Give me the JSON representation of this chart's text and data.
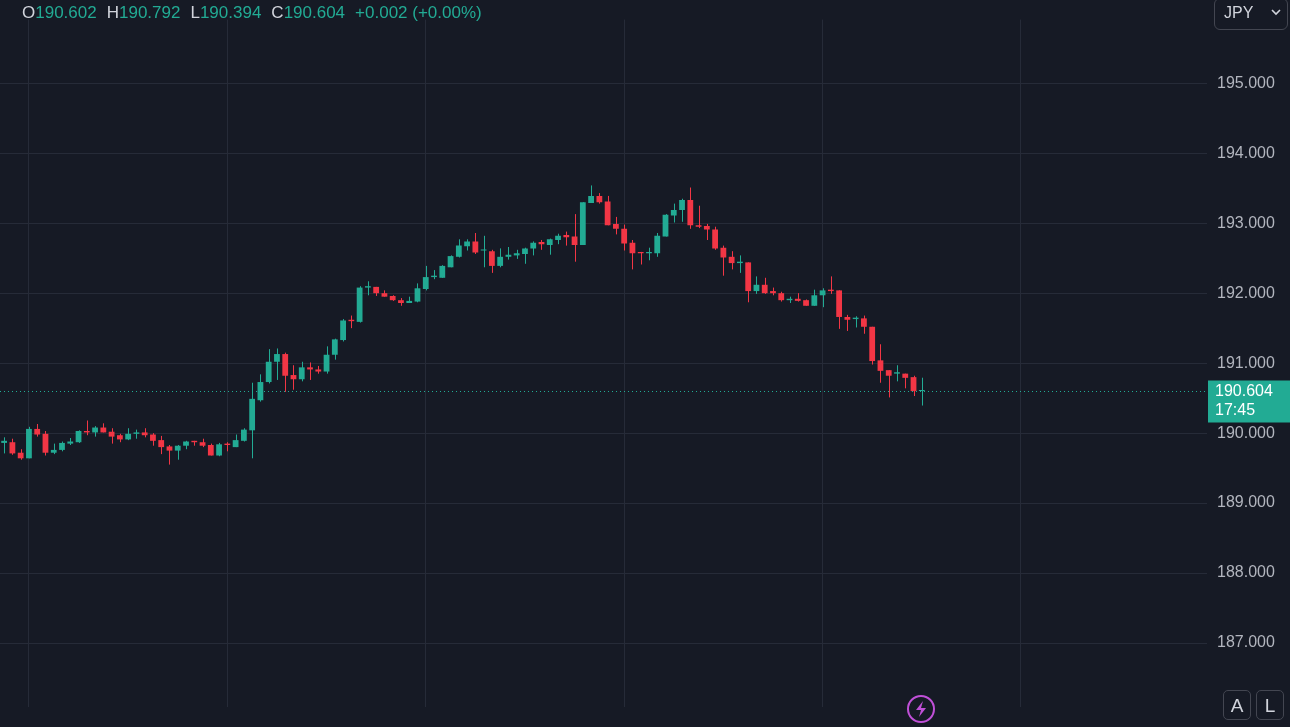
{
  "chart_data": {
    "type": "candlestick",
    "categories": [
      null,
      null,
      null,
      null,
      null,
      null,
      null,
      null,
      null,
      null,
      null,
      null,
      null,
      null,
      null,
      null,
      null,
      null,
      null,
      null,
      null,
      null,
      null,
      null,
      null,
      null,
      null,
      null,
      null,
      null,
      null,
      null,
      null,
      null,
      null,
      null,
      null,
      null,
      null,
      null,
      null,
      null,
      null,
      null,
      null,
      null,
      null,
      null,
      null,
      null,
      null,
      null,
      null,
      null,
      null,
      null,
      null,
      null,
      null,
      null,
      null,
      null,
      null,
      null,
      null,
      null,
      null,
      null,
      null,
      null,
      null,
      null,
      null,
      null,
      null,
      null,
      null,
      null,
      null,
      null,
      null,
      null,
      null,
      null,
      null,
      null,
      null,
      null,
      null,
      null,
      null,
      null,
      null,
      null,
      null,
      null,
      null,
      null,
      null,
      null,
      null,
      null,
      null,
      null,
      null,
      null,
      null,
      null,
      null,
      null,
      null,
      null,
      null,
      null,
      null,
      null,
      null,
      null,
      null,
      null,
      null,
      null,
      null,
      null,
      null,
      null,
      null,
      null,
      null,
      null,
      null,
      null,
      null,
      null,
      null,
      null,
      null,
      null,
      null,
      null,
      null,
      null,
      null,
      null,
      null,
      null
    ],
    "ohlc": [
      [
        189.86,
        189.94,
        189.71,
        189.89
      ],
      [
        189.87,
        189.92,
        189.69,
        189.71
      ],
      [
        189.72,
        189.77,
        189.62,
        189.64
      ],
      [
        189.64,
        190.09,
        189.64,
        190.06
      ],
      [
        190.06,
        190.13,
        189.95,
        189.98
      ],
      [
        189.99,
        190.03,
        189.68,
        189.72
      ],
      [
        189.72,
        189.85,
        189.7,
        189.76
      ],
      [
        189.76,
        189.88,
        189.74,
        189.86
      ],
      [
        189.85,
        189.93,
        189.83,
        189.88
      ],
      [
        189.87,
        190.04,
        189.86,
        190.03
      ],
      [
        190.03,
        190.18,
        189.97,
        190.01
      ],
      [
        190.01,
        190.1,
        189.95,
        190.08
      ],
      [
        190.08,
        190.14,
        190.01,
        190.01
      ],
      [
        190.02,
        190.07,
        189.85,
        189.95
      ],
      [
        189.97,
        189.99,
        189.87,
        189.91
      ],
      [
        189.91,
        190.07,
        189.9,
        189.99
      ],
      [
        189.99,
        190.05,
        189.92,
        190.01
      ],
      [
        190.01,
        190.07,
        189.94,
        189.97
      ],
      [
        189.98,
        190.0,
        189.82,
        189.89
      ],
      [
        189.9,
        189.96,
        189.7,
        189.8
      ],
      [
        189.81,
        189.83,
        189.55,
        189.75
      ],
      [
        189.75,
        189.83,
        189.62,
        189.82
      ],
      [
        189.82,
        189.89,
        189.77,
        189.88
      ],
      [
        189.89,
        189.89,
        189.82,
        189.87
      ],
      [
        189.87,
        189.92,
        189.8,
        189.82
      ],
      [
        189.83,
        189.85,
        189.68,
        189.68
      ],
      [
        189.68,
        189.86,
        189.67,
        189.84
      ],
      [
        189.85,
        189.87,
        189.74,
        189.83
      ],
      [
        189.8,
        189.98,
        189.8,
        189.9
      ],
      [
        189.89,
        190.07,
        189.88,
        190.05
      ],
      [
        190.04,
        190.72,
        189.64,
        190.49
      ],
      [
        190.47,
        190.84,
        190.45,
        190.73
      ],
      [
        190.73,
        191.2,
        190.71,
        191.02
      ],
      [
        191.02,
        191.21,
        190.76,
        191.13
      ],
      [
        191.13,
        191.15,
        190.59,
        190.82
      ],
      [
        190.83,
        190.97,
        190.62,
        190.77
      ],
      [
        190.77,
        191.02,
        190.74,
        190.94
      ],
      [
        190.94,
        191.01,
        190.76,
        190.91
      ],
      [
        190.91,
        190.96,
        190.85,
        190.88
      ],
      [
        190.88,
        191.24,
        190.85,
        191.12
      ],
      [
        191.12,
        191.35,
        191.05,
        191.34
      ],
      [
        191.33,
        191.63,
        191.31,
        191.61
      ],
      [
        191.62,
        191.68,
        191.5,
        191.6
      ],
      [
        191.59,
        192.1,
        191.58,
        192.08
      ],
      [
        192.08,
        192.17,
        191.97,
        192.1
      ],
      [
        192.09,
        192.09,
        191.96,
        192.0
      ],
      [
        192.0,
        192.04,
        191.95,
        191.95
      ],
      [
        191.96,
        191.97,
        191.89,
        191.9
      ],
      [
        191.9,
        191.93,
        191.82,
        191.86
      ],
      [
        191.86,
        191.95,
        191.86,
        191.89
      ],
      [
        191.88,
        192.14,
        191.87,
        192.07
      ],
      [
        192.06,
        192.39,
        192.04,
        192.23
      ],
      [
        192.23,
        192.33,
        192.2,
        192.25
      ],
      [
        192.22,
        192.4,
        192.22,
        192.39
      ],
      [
        192.37,
        192.54,
        192.37,
        192.53
      ],
      [
        192.52,
        192.77,
        192.51,
        192.68
      ],
      [
        192.67,
        192.77,
        192.61,
        192.74
      ],
      [
        192.74,
        192.86,
        192.56,
        192.58
      ],
      [
        192.61,
        192.82,
        192.37,
        192.62
      ],
      [
        192.6,
        192.62,
        192.29,
        192.39
      ],
      [
        192.39,
        192.64,
        192.37,
        192.52
      ],
      [
        192.52,
        192.66,
        192.48,
        192.55
      ],
      [
        192.54,
        192.62,
        192.49,
        192.57
      ],
      [
        192.56,
        192.65,
        192.42,
        192.64
      ],
      [
        192.64,
        192.74,
        192.54,
        192.72
      ],
      [
        192.73,
        192.76,
        192.62,
        192.7
      ],
      [
        192.69,
        192.78,
        192.55,
        192.77
      ],
      [
        192.76,
        192.85,
        192.7,
        192.82
      ],
      [
        192.83,
        192.88,
        192.68,
        192.8
      ],
      [
        192.81,
        193.13,
        192.45,
        192.69
      ],
      [
        192.69,
        193.3,
        192.69,
        193.3
      ],
      [
        193.29,
        193.54,
        193.29,
        193.39
      ],
      [
        193.39,
        193.43,
        193.28,
        193.3
      ],
      [
        193.31,
        193.39,
        192.97,
        192.97
      ],
      [
        192.99,
        193.09,
        192.84,
        192.92
      ],
      [
        192.92,
        192.98,
        192.61,
        192.71
      ],
      [
        192.72,
        192.76,
        192.34,
        192.57
      ],
      [
        192.59,
        192.59,
        192.41,
        192.57
      ],
      [
        192.57,
        192.65,
        192.47,
        192.59
      ],
      [
        192.57,
        192.86,
        192.52,
        192.82
      ],
      [
        192.81,
        193.13,
        192.81,
        193.12
      ],
      [
        193.11,
        193.28,
        193.01,
        193.19
      ],
      [
        193.19,
        193.35,
        193.02,
        193.33
      ],
      [
        193.33,
        193.51,
        192.92,
        192.97
      ],
      [
        192.97,
        193.25,
        192.93,
        192.95
      ],
      [
        192.96,
        192.99,
        192.76,
        192.91
      ],
      [
        192.91,
        192.95,
        192.62,
        192.64
      ],
      [
        192.65,
        192.68,
        192.25,
        192.51
      ],
      [
        192.52,
        192.6,
        192.34,
        192.43
      ],
      [
        192.43,
        192.54,
        192.29,
        192.45
      ],
      [
        192.44,
        192.44,
        191.87,
        192.03
      ],
      [
        192.03,
        192.24,
        191.99,
        192.12
      ],
      [
        192.12,
        192.22,
        191.99,
        192.0
      ],
      [
        192.03,
        192.08,
        191.97,
        192.0
      ],
      [
        192.0,
        192.02,
        191.88,
        191.9
      ],
      [
        191.9,
        191.95,
        191.86,
        191.92
      ],
      [
        191.92,
        192.0,
        191.88,
        191.89
      ],
      [
        191.9,
        191.91,
        191.82,
        191.82
      ],
      [
        191.82,
        192.05,
        191.82,
        191.97
      ],
      [
        191.97,
        192.07,
        191.8,
        192.04
      ],
      [
        192.05,
        192.24,
        191.99,
        192.03
      ],
      [
        192.04,
        192.04,
        191.49,
        191.66
      ],
      [
        191.66,
        191.69,
        191.46,
        191.62
      ],
      [
        191.63,
        191.67,
        191.51,
        191.65
      ],
      [
        191.64,
        191.68,
        191.42,
        191.52
      ],
      [
        191.52,
        191.52,
        190.98,
        191.03
      ],
      [
        191.04,
        191.27,
        190.72,
        190.89
      ],
      [
        190.9,
        190.9,
        190.51,
        190.82
      ],
      [
        190.85,
        190.97,
        190.74,
        190.87
      ],
      [
        190.85,
        190.85,
        190.64,
        190.79
      ],
      [
        190.8,
        190.82,
        190.53,
        190.6
      ],
      [
        190.602,
        190.792,
        190.394,
        190.604
      ],
      null,
      null,
      null,
      null,
      null,
      null,
      null,
      null,
      null,
      null,
      null,
      null,
      null,
      null,
      null,
      null,
      null,
      null,
      null,
      null,
      null,
      null,
      null,
      null,
      null,
      null,
      null,
      null,
      null,
      null,
      null,
      null,
      null,
      null
    ],
    "colors": [
      "#22ab94",
      "#f23645",
      "#f23645",
      "#22ab94",
      "#f23645",
      "#f23645",
      "#22ab94",
      "#22ab94",
      "#22ab94",
      "#22ab94",
      "#f23645",
      "#22ab94",
      "#f23645",
      "#f23645",
      "#f23645",
      "#22ab94",
      "#22ab94",
      "#f23645",
      "#f23645",
      "#f23645",
      "#f23645",
      "#22ab94",
      "#22ab94",
      "#f23645",
      "#f23645",
      "#f23645",
      "#22ab94",
      "#f23645",
      "#22ab94",
      "#22ab94",
      "#22ab94",
      "#22ab94",
      "#22ab94",
      "#22ab94",
      "#f23645",
      "#f23645",
      "#22ab94",
      "#f23645",
      "#f23645",
      "#22ab94",
      "#22ab94",
      "#22ab94",
      "#f23645",
      "#22ab94",
      "#22ab94",
      "#f23645",
      "#f23645",
      "#f23645",
      "#f23645",
      "#22ab94",
      "#22ab94",
      "#22ab94",
      "#22ab94",
      "#22ab94",
      "#22ab94",
      "#22ab94",
      "#22ab94",
      "#f23645",
      "#22ab94",
      "#f23645",
      "#22ab94",
      "#22ab94",
      "#22ab94",
      "#22ab94",
      "#22ab94",
      "#f23645",
      "#22ab94",
      "#22ab94",
      "#f23645",
      "#f23645",
      "#22ab94",
      "#22ab94",
      "#f23645",
      "#f23645",
      "#f23645",
      "#f23645",
      "#f23645",
      "#f23645",
      "#22ab94",
      "#22ab94",
      "#22ab94",
      "#22ab94",
      "#22ab94",
      "#f23645",
      "#f23645",
      "#f23645",
      "#f23645",
      "#f23645",
      "#f23645",
      "#22ab94",
      "#f23645",
      "#22ab94",
      "#f23645",
      "#f23645",
      "#f23645",
      "#22ab94",
      "#f23645",
      "#f23645",
      "#22ab94",
      "#22ab94",
      "#f23645",
      "#f23645",
      "#f23645",
      "#22ab94",
      "#f23645",
      "#f23645",
      "#f23645",
      "#f23645",
      "#22ab94",
      "#f23645",
      "#f23645",
      "#22ab94",
      null,
      null,
      null,
      null,
      null,
      null,
      null,
      null,
      null,
      null,
      null,
      null,
      null,
      null,
      null,
      null,
      null,
      null,
      null,
      null,
      null,
      null,
      null,
      null,
      null,
      null,
      null,
      null,
      null,
      null,
      null,
      null,
      null,
      null
    ],
    "ylim": [
      186.08,
      195.91
    ],
    "yticks": [
      {
        "value": 187,
        "label": "187.000"
      },
      {
        "value": 188,
        "label": "188.000"
      },
      {
        "value": 189,
        "label": "189.000"
      },
      {
        "value": 190,
        "label": "190.000"
      },
      {
        "value": 191,
        "label": "191.000"
      },
      {
        "value": 192,
        "label": "192.000"
      },
      {
        "value": 193,
        "label": "193.000"
      },
      {
        "value": 194,
        "label": "194.000"
      },
      {
        "value": 195,
        "label": "195.000"
      }
    ],
    "grid": true,
    "legend": false,
    "tick_labels": "y",
    "ref_lines": [
      {
        "axis": "y",
        "value": 190.604,
        "label": "190.604 17:45",
        "color": "#22ab94",
        "line_style": "dotted"
      }
    ],
    "annotations": [
      "O190.602",
      "H190.792",
      "L190.394",
      "C190.604",
      "+0.002 (+0.00%)",
      "JPY",
      "A",
      "L"
    ]
  }
}
